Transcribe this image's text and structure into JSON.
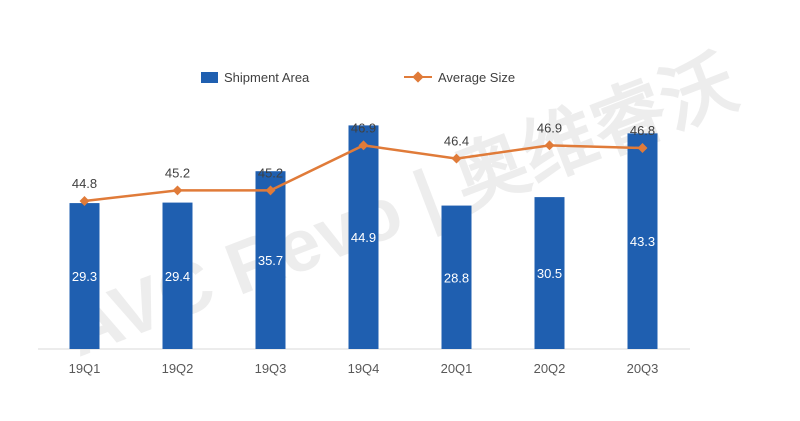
{
  "chart_data": {
    "type": "bar+line",
    "categories": [
      "19Q1",
      "19Q2",
      "19Q3",
      "19Q4",
      "20Q1",
      "20Q2",
      "20Q3"
    ],
    "series": [
      {
        "name": "Shipment Area",
        "type": "bar",
        "values": [
          29.3,
          29.4,
          35.7,
          44.9,
          28.8,
          30.5,
          43.3
        ]
      },
      {
        "name": "Average Size",
        "type": "line",
        "values": [
          44.8,
          45.2,
          45.2,
          46.9,
          46.4,
          46.9,
          46.8
        ]
      }
    ],
    "bar_ylim": [
      0,
      50
    ],
    "line_ylim": [
      40,
      48
    ],
    "colors": {
      "bar": "#1f5fb0",
      "line": "#e07b39",
      "axis": "#d9d9d9"
    },
    "watermark": "AVC Revo | 奥维睿沃"
  }
}
